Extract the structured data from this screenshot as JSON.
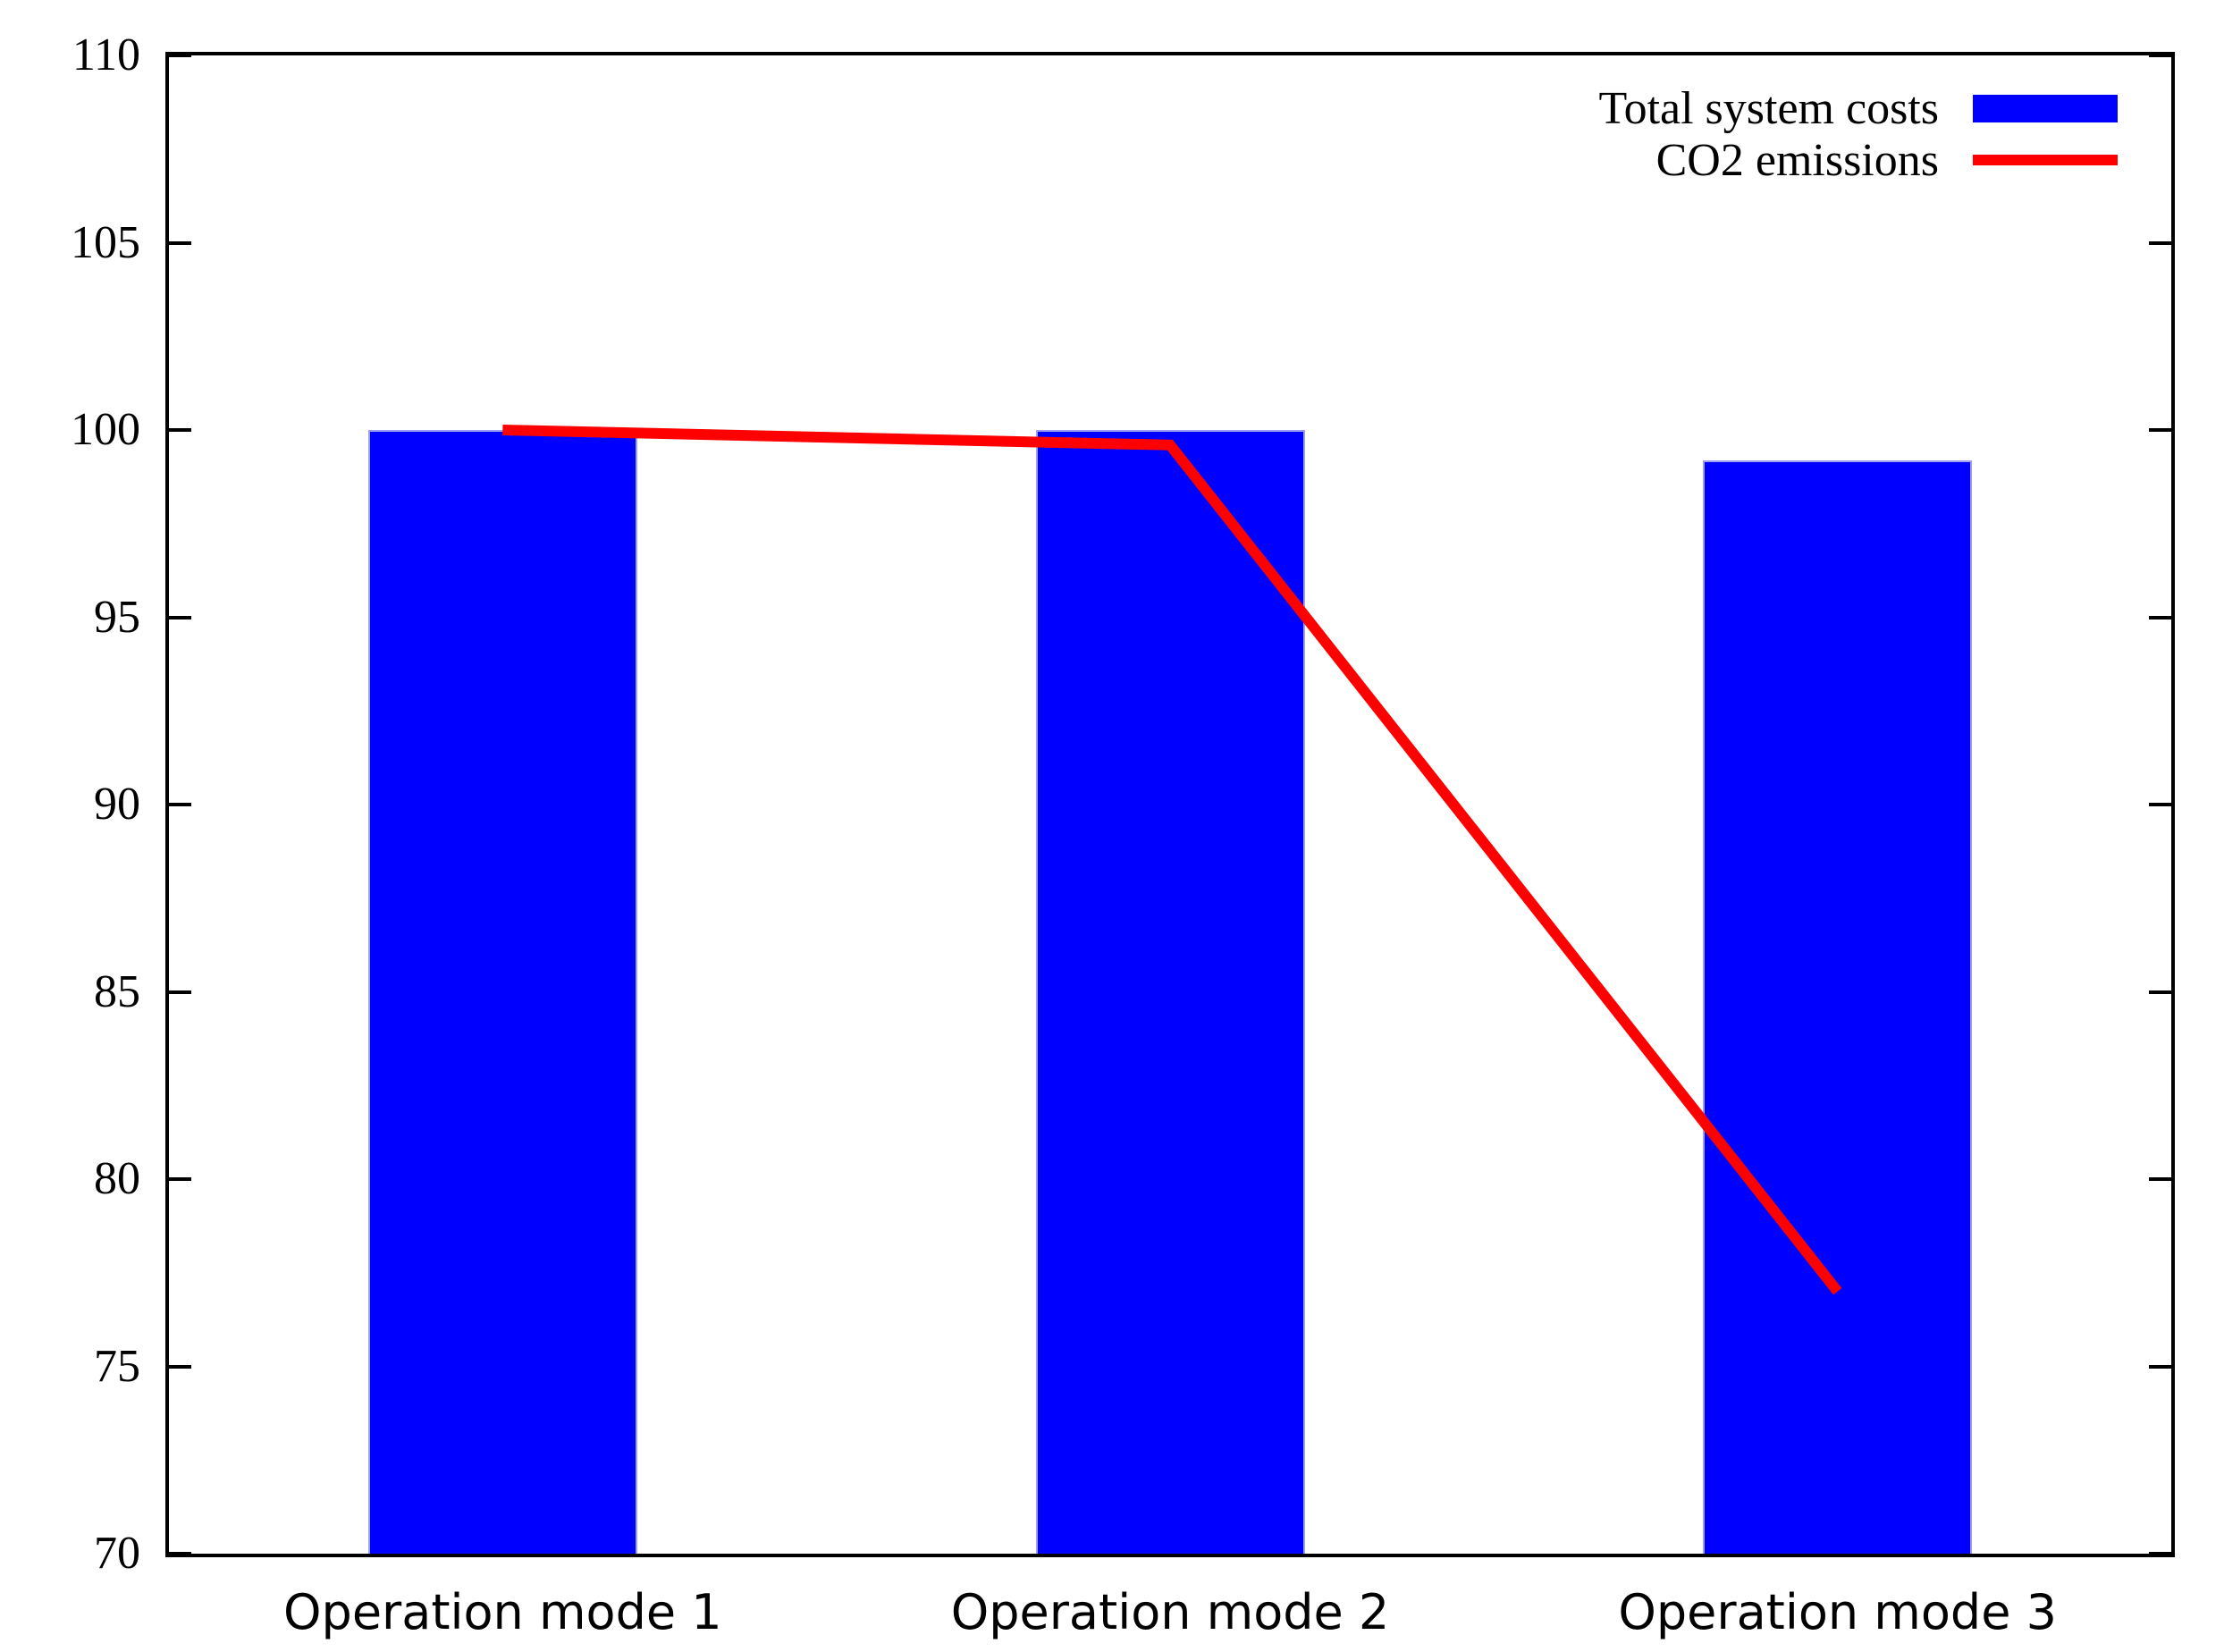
{
  "figure": {
    "background": "#ffffff",
    "axis_color": "#000000"
  },
  "chart_data": {
    "type": "bar",
    "categories": [
      "Operation mode 1",
      "Operation mode 2",
      "Operation mode 3"
    ],
    "series": [
      {
        "name": "Total system costs",
        "type": "bar",
        "color": "#0000ff",
        "values": [
          100,
          100,
          99.2
        ]
      },
      {
        "name": "CO2 emissions",
        "type": "line",
        "color": "#ff0000",
        "values": [
          100,
          99.6,
          77
        ]
      }
    ],
    "title": "",
    "xlabel": "",
    "ylabel": "",
    "ylim": [
      70,
      110
    ],
    "yticks": [
      70,
      75,
      80,
      85,
      90,
      95,
      100,
      105,
      110
    ],
    "grid": false,
    "legend_position": "top-right",
    "tick_style": "inward-mirrored"
  }
}
